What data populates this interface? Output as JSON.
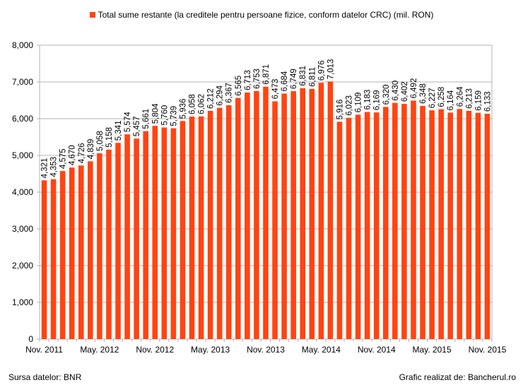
{
  "colors": {
    "bar": "#ff4412",
    "grid": "#b3b3b3",
    "axis": "#b3b3b3",
    "text": "#000000"
  },
  "footer": {
    "source": "Sursa datelor: BNR",
    "credit": "Grafic realizat de: Bancherul.ro"
  },
  "chart_data": {
    "type": "bar",
    "legend_placement": "top-center",
    "grid": true,
    "series": [
      {
        "name": "Total sume restante (la creditele pentru persoane fizice, conform datelor CRC) (mil. RON)",
        "values": [
          4321,
          4353,
          4575,
          4670,
          4726,
          4839,
          5058,
          5158,
          5341,
          5574,
          5457,
          5661,
          5804,
          5760,
          5739,
          5936,
          6058,
          6062,
          6212,
          6294,
          6367,
          6565,
          6713,
          6753,
          6871,
          6473,
          6684,
          6749,
          6831,
          6811,
          6976,
          7013,
          5916,
          6023,
          6109,
          6183,
          6169,
          6320,
          6430,
          6402,
          6492,
          6348,
          6227,
          6258,
          6164,
          6264,
          6213,
          6159,
          6133
        ]
      }
    ],
    "value_labels": [
      "4,321",
      "4,353",
      "4,575",
      "4,670",
      "4,726",
      "4,839",
      "5,058",
      "5,158",
      "5,341",
      "5,574",
      "5,457",
      "5,661",
      "5,804",
      "5,760",
      "5,739",
      "5,936",
      "6,058",
      "6,062",
      "6,212",
      "6,294",
      "6,367",
      "6,565",
      "6,713",
      "6,753",
      "6,871",
      "6,473",
      "6,684",
      "6,749",
      "6,831",
      "6,811",
      "6,976",
      "7,013",
      "5,916",
      "6,023",
      "6,109",
      "6,183",
      "6,169",
      "6,320",
      "6,430",
      "6,402",
      "6,492",
      "6,348",
      "6,227",
      "6,258",
      "6,164",
      "6,264",
      "6,213",
      "6,159",
      "6,133"
    ],
    "x_ticks": [
      {
        "index": 0,
        "label": "Nov. 2011"
      },
      {
        "index": 6,
        "label": "May. 2012"
      },
      {
        "index": 12,
        "label": "Nov. 2012"
      },
      {
        "index": 18,
        "label": "May. 2013"
      },
      {
        "index": 24,
        "label": "Nov. 2013"
      },
      {
        "index": 30,
        "label": "May. 2014"
      },
      {
        "index": 36,
        "label": "Nov. 2014"
      },
      {
        "index": 42,
        "label": "May. 2015"
      },
      {
        "index": 48,
        "label": "Nov. 2015"
      }
    ],
    "y_ticks": [
      "0",
      "1,000",
      "2,000",
      "3,000",
      "4,000",
      "5,000",
      "6,000",
      "7,000",
      "8,000"
    ],
    "ylim": [
      0,
      8000
    ],
    "ystep": 1000
  }
}
